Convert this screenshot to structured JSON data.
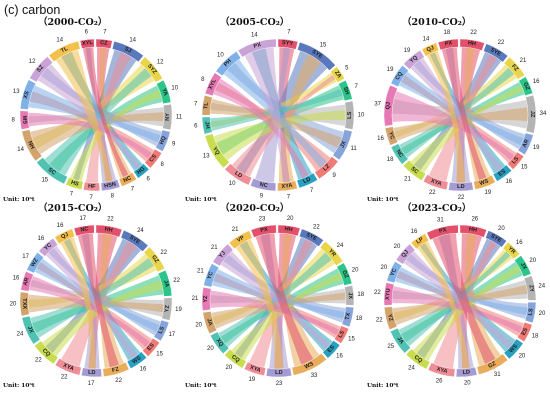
{
  "figure_label": "(c) carbon",
  "colors": [
    "#e2506b",
    "#5a79bd",
    "#e9d54a",
    "#2bc489",
    "#b4b4b4",
    "#86a4d9",
    "#f07b76",
    "#2aa0c0",
    "#e8ac5a",
    "#a49bd2",
    "#ee8d96",
    "#c8dc4e",
    "#4fc2b1",
    "#d3a36c",
    "#e678b4",
    "#7fb0e8",
    "#c9a3d6",
    "#f3c04c"
  ],
  "chart_data": [
    {
      "type": "chord",
      "title": "（2000-CO₂）",
      "unit": "Unit: 10⁶t",
      "nodes": [
        {
          "name": "CZ",
          "value": 7
        },
        {
          "name": "SJ",
          "value": 14
        },
        {
          "name": "SYZ",
          "value": 12
        },
        {
          "name": "YA",
          "value": 10
        },
        {
          "name": "NY",
          "value": 11
        },
        {
          "name": "HQ",
          "value": 9
        },
        {
          "name": "CS",
          "value": 8
        },
        {
          "name": "HG",
          "value": 6
        },
        {
          "name": "NC",
          "value": 7
        },
        {
          "name": "HSN",
          "value": 8
        },
        {
          "name": "HF",
          "value": 7
        },
        {
          "name": "HS",
          "value": 7
        },
        {
          "name": "SC",
          "value": 15
        },
        {
          "name": "NH",
          "value": 14
        },
        {
          "name": "MS",
          "value": 8
        },
        {
          "name": "XS",
          "value": 13
        },
        {
          "name": "SZ",
          "value": 12
        },
        {
          "name": "TL",
          "value": 14
        },
        {
          "name": "XYL",
          "value": 6
        }
      ]
    },
    {
      "type": "chord",
      "title": "（2005-CO₂）",
      "unit": "Unit: 10⁶t",
      "nodes": [
        {
          "name": "SYY",
          "value": 7
        },
        {
          "name": "SYE",
          "value": 15
        },
        {
          "name": "ZA",
          "value": 5
        },
        {
          "name": "SH",
          "value": 7
        },
        {
          "name": "LS",
          "value": 10
        },
        {
          "name": "JX",
          "value": 11
        },
        {
          "name": "LZ",
          "value": 9
        },
        {
          "name": "LD",
          "value": 7
        },
        {
          "name": "XYA",
          "value": 7
        },
        {
          "name": "NC",
          "value": 9
        },
        {
          "name": "LD",
          "value": 10
        },
        {
          "name": "YQ",
          "value": 13
        },
        {
          "name": "JH",
          "value": 6
        },
        {
          "name": "TL",
          "value": 7
        },
        {
          "name": "XYL",
          "value": 8
        },
        {
          "name": "PH",
          "value": 10
        },
        {
          "name": "PX",
          "value": 14
        }
      ]
    },
    {
      "type": "chord",
      "title": "（2010-CO₂）",
      "unit": "Unit: 10⁶t",
      "nodes": [
        {
          "name": "HH",
          "value": 22
        },
        {
          "name": "SYE",
          "value": 22
        },
        {
          "name": "FZ",
          "value": 21
        },
        {
          "name": "GZ",
          "value": 16
        },
        {
          "name": "JZ",
          "value": 34
        },
        {
          "name": "AR",
          "value": 19
        },
        {
          "name": "LS",
          "value": 15
        },
        {
          "name": "ES",
          "value": 16
        },
        {
          "name": "WS",
          "value": 19
        },
        {
          "name": "LD",
          "value": 22
        },
        {
          "name": "XYA",
          "value": 22
        },
        {
          "name": "SC",
          "value": 21
        },
        {
          "name": "NC",
          "value": 18
        },
        {
          "name": "YC",
          "value": 16
        },
        {
          "name": "QJ",
          "value": 37
        },
        {
          "name": "CQ",
          "value": 19
        },
        {
          "name": "YQ",
          "value": 19
        },
        {
          "name": "QJ",
          "value": 14
        },
        {
          "name": "PX",
          "value": 18
        }
      ]
    },
    {
      "type": "chord",
      "title": "（2015-CO₂）",
      "unit": "Unit: 10⁶t",
      "nodes": [
        {
          "name": "HH",
          "value": 22
        },
        {
          "name": "SYE",
          "value": 24
        },
        {
          "name": "GZ",
          "value": 22
        },
        {
          "name": "JA",
          "value": 22
        },
        {
          "name": "YZ",
          "value": 19
        },
        {
          "name": "LS",
          "value": 17
        },
        {
          "name": "ES",
          "value": 15
        },
        {
          "name": "WS",
          "value": 16
        },
        {
          "name": "FZ",
          "value": 22
        },
        {
          "name": "LD",
          "value": 17
        },
        {
          "name": "XYA",
          "value": 22
        },
        {
          "name": "CQ",
          "value": 22
        },
        {
          "name": "JX",
          "value": 24
        },
        {
          "name": "TXX",
          "value": 20
        },
        {
          "name": "AR",
          "value": 16
        },
        {
          "name": "WZ",
          "value": 17
        },
        {
          "name": "YC",
          "value": 16
        },
        {
          "name": "QJ",
          "value": 16
        },
        {
          "name": "NC",
          "value": 17
        }
      ]
    },
    {
      "type": "chord",
      "title": "（2020-CO₂）",
      "unit": "Unit: 10⁶t",
      "nodes": [
        {
          "name": "HH",
          "value": 20
        },
        {
          "name": "SYE",
          "value": 22
        },
        {
          "name": "YR",
          "value": 24
        },
        {
          "name": "GZ",
          "value": 20
        },
        {
          "name": "JX",
          "value": 18
        },
        {
          "name": "TX",
          "value": 18
        },
        {
          "name": "LS",
          "value": 15
        },
        {
          "name": "ES",
          "value": 16
        },
        {
          "name": "WS",
          "value": 33
        },
        {
          "name": "LD",
          "value": 23
        },
        {
          "name": "XYA",
          "value": 19
        },
        {
          "name": "CQ",
          "value": 20
        },
        {
          "name": "XQ",
          "value": 20
        },
        {
          "name": "JA",
          "value": 20
        },
        {
          "name": "YZ",
          "value": 21
        },
        {
          "name": "YC",
          "value": 21
        },
        {
          "name": "YJ",
          "value": 21
        },
        {
          "name": "VP",
          "value": 21
        },
        {
          "name": "PX",
          "value": 23
        }
      ]
    },
    {
      "type": "chord",
      "title": "（2023-CO₂）",
      "unit": "Unit: 10⁶t",
      "nodes": [
        {
          "name": "HH",
          "value": 26
        },
        {
          "name": "SYE",
          "value": 20
        },
        {
          "name": "YR",
          "value": 16
        },
        {
          "name": "JX",
          "value": 20
        },
        {
          "name": "ZY",
          "value": 24
        },
        {
          "name": "LS",
          "value": 20
        },
        {
          "name": "ES",
          "value": 18
        },
        {
          "name": "WS",
          "value": 20
        },
        {
          "name": "GZ",
          "value": 31
        },
        {
          "name": "LD",
          "value": 20
        },
        {
          "name": "XYA",
          "value": 26
        },
        {
          "name": "CQ",
          "value": 24
        },
        {
          "name": "JA",
          "value": 25
        },
        {
          "name": "YZ",
          "value": 22
        },
        {
          "name": "XYU",
          "value": 22
        },
        {
          "name": "YC",
          "value": 20
        },
        {
          "name": "QJ",
          "value": 20
        },
        {
          "name": "LP",
          "value": 16
        },
        {
          "name": "PX",
          "value": 31
        }
      ]
    }
  ]
}
